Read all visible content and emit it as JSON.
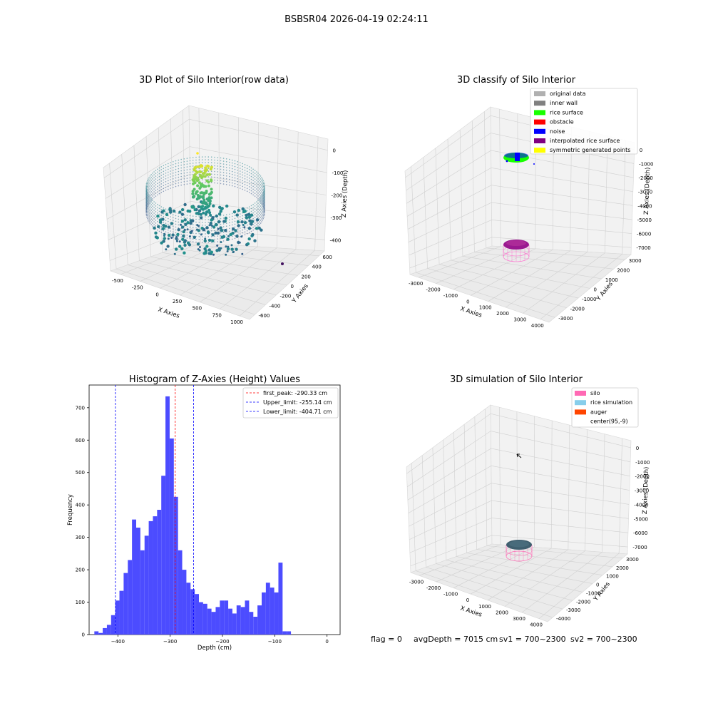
{
  "suptitle": "BSBSR04 2026-04-19 02:24:11",
  "footer": {
    "flag": "flag = 0",
    "avg": "avgDepth = 7015 cm",
    "sv1": "sv1 = 700~2300",
    "sv2": "sv2 = 700~2300"
  },
  "chart_data": [
    {
      "type": "scatter",
      "title": "3D Plot of Silo Interior(row data)",
      "xlabel": "X Axies",
      "ylabel": "Y Axies",
      "zlabel": "Z Axies (Depth)",
      "x_ticks": [
        "-500",
        "-250",
        "0",
        "250",
        "500",
        "750",
        "1000"
      ],
      "y_ticks": [
        "-600",
        "-400",
        "-200",
        "0",
        "200",
        "400",
        "600"
      ],
      "z_ticks": [
        "0",
        "-100",
        "-200",
        "-300",
        "-400"
      ],
      "colormap": "viridis"
    },
    {
      "type": "scatter",
      "title": "3D classify of Silo Interior",
      "xlabel": "X Axies",
      "ylabel": "Y Axies",
      "zlabel": "Z Axies (Depth)",
      "x_ticks": [
        "-3000",
        "-2000",
        "-1000",
        "0",
        "1000",
        "2000",
        "3000",
        "4000"
      ],
      "y_ticks": [
        "-3000",
        "-2000",
        "-1000",
        "0",
        "1000",
        "2000",
        "3000"
      ],
      "z_ticks": [
        "0",
        "-1000",
        "-2000",
        "-3000",
        "-4000",
        "-5000",
        "-6000",
        "-7000"
      ],
      "legend": [
        {
          "label": "original data",
          "color": "#b0b0b0"
        },
        {
          "label": "inner wall",
          "color": "#808080"
        },
        {
          "label": "rice surface",
          "color": "#19ff00"
        },
        {
          "label": "obstacle",
          "color": "#ff0000"
        },
        {
          "label": "noise",
          "color": "#0000ff"
        },
        {
          "label": "interpolated rice surface",
          "color": "#800080"
        },
        {
          "label": "symmetric generated points",
          "color": "#ffff00"
        }
      ]
    },
    {
      "type": "bar",
      "title": "Histogram of Z-Axies (Height) Values",
      "xlabel": "Depth (cm)",
      "ylabel": "Frequency",
      "xlim": [
        -455,
        25
      ],
      "ylim": [
        0,
        770
      ],
      "x_ticks": [
        -400,
        -300,
        -200,
        -100,
        0
      ],
      "y_ticks": [
        0,
        100,
        200,
        300,
        400,
        500,
        600,
        700
      ],
      "bin_start": -445,
      "bin_width": 8,
      "values": [
        10,
        5,
        20,
        30,
        60,
        105,
        135,
        190,
        230,
        355,
        330,
        260,
        305,
        350,
        365,
        385,
        490,
        735,
        605,
        425,
        260,
        200,
        160,
        140,
        125,
        100,
        95,
        80,
        70,
        85,
        105,
        105,
        80,
        65,
        90,
        85,
        105,
        70,
        55,
        90,
        130,
        160,
        145,
        130,
        222,
        10,
        10
      ],
      "bar_color": "#4c4cff",
      "vlines": [
        {
          "label": "first_peak: -290.33 cm",
          "x": -290.33,
          "color": "#ff0000"
        },
        {
          "label": "Upper_limit: -255.14 cm",
          "x": -255.14,
          "color": "#0000ff"
        },
        {
          "label": "Lower_limit: -404.71 cm",
          "x": -404.71,
          "color": "#0000ff"
        }
      ]
    },
    {
      "type": "scatter",
      "title": "3D simulation of Silo Interior",
      "xlabel": "X Axies",
      "ylabel": "Y Axies",
      "zlabel": "Z Axies (Depth)",
      "x_ticks": [
        "-3000",
        "-2000",
        "-1000",
        "0",
        "1000",
        "2000",
        "3000",
        "4000"
      ],
      "y_ticks": [
        "-4000",
        "-3000",
        "-2000",
        "-1000",
        "0",
        "1000",
        "2000",
        "3000"
      ],
      "z_ticks": [
        "0",
        "-1000",
        "-2000",
        "-3000",
        "-4000",
        "-5000",
        "-6000",
        "-7000"
      ],
      "legend": [
        {
          "label": "silo",
          "color": "#ff69b4"
        },
        {
          "label": "rice simulation",
          "color": "#87ceeb"
        },
        {
          "label": "auger",
          "color": "#ff4500"
        },
        {
          "label": "center(95,-9)",
          "color": "#ffffff"
        }
      ]
    }
  ]
}
